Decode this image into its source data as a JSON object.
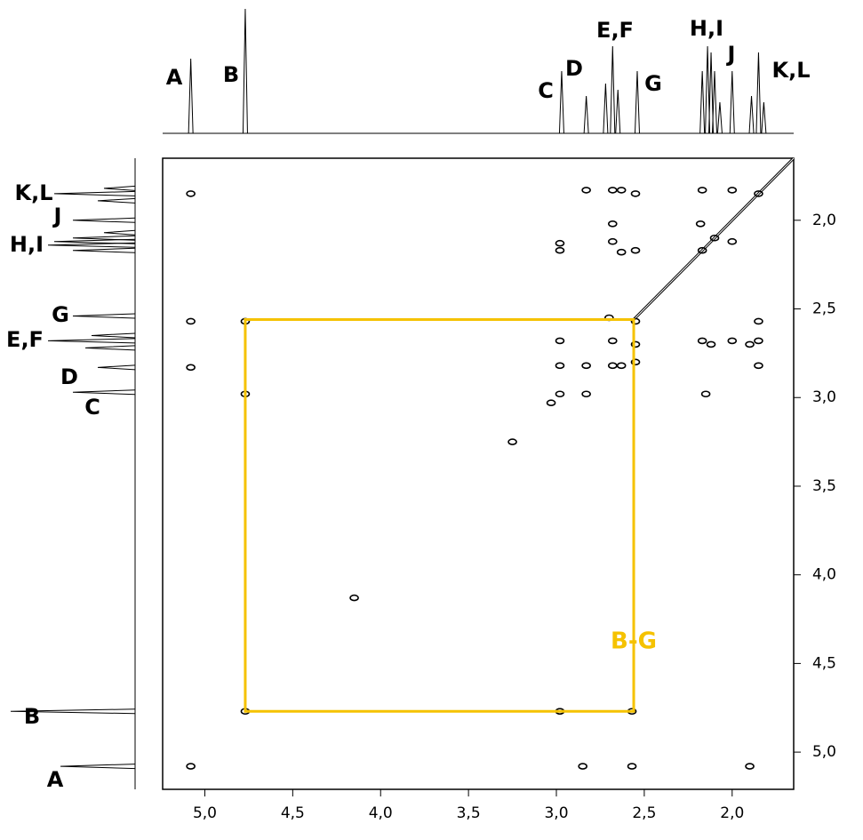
{
  "chart_data": {
    "type": "scatter",
    "xlim": [
      5.24,
      1.65
    ],
    "ylim": [
      1.65,
      5.21
    ],
    "xticks": [
      {
        "value": 5.0,
        "label": "5,0"
      },
      {
        "value": 4.5,
        "label": "4,5"
      },
      {
        "value": 4.0,
        "label": "4,0"
      },
      {
        "value": 3.5,
        "label": "3,5"
      },
      {
        "value": 3.0,
        "label": "3,0"
      },
      {
        "value": 2.5,
        "label": "2,5"
      },
      {
        "value": 2.0,
        "label": "2,0"
      }
    ],
    "yticks": [
      {
        "value": 2.0,
        "label": "2,0"
      },
      {
        "value": 2.5,
        "label": "2,5"
      },
      {
        "value": 3.0,
        "label": "3,0"
      },
      {
        "value": 3.5,
        "label": "3,5"
      },
      {
        "value": 4.0,
        "label": "4,0"
      },
      {
        "value": 4.5,
        "label": "4,5"
      },
      {
        "value": 5.0,
        "label": "5,0"
      }
    ],
    "peak_labels": [
      "A",
      "B",
      "C",
      "D",
      "E,F",
      "G",
      "H,I",
      "J",
      "K,L"
    ],
    "projection": {
      "shift": [
        5.08,
        4.77,
        2.97,
        2.83,
        2.72,
        2.68,
        2.65,
        2.54,
        2.17,
        2.14,
        2.12,
        2.1,
        2.07,
        2.0,
        1.89,
        1.85,
        1.82
      ],
      "height": [
        60,
        100,
        50,
        30,
        40,
        70,
        35,
        50,
        50,
        70,
        65,
        50,
        25,
        50,
        30,
        65,
        25
      ]
    },
    "series": [
      {
        "color": "#000000",
        "x": [
          5.08,
          5.08,
          5.08,
          5.08,
          4.77,
          4.77,
          4.77,
          2.98,
          2.85,
          2.57,
          1.9,
          2.98,
          2.57,
          2.83,
          2.68,
          2.63,
          2.55,
          2.68,
          2.98,
          2.98,
          2.68,
          2.63,
          2.55,
          2.17,
          2.0,
          1.85,
          2.18,
          2.1,
          2.0,
          2.17,
          1.85,
          2.17,
          2.12,
          2.0,
          1.85,
          1.9,
          1.85,
          2.98,
          2.68,
          2.98,
          2.83,
          2.83,
          2.98,
          2.15,
          2.55,
          2.55,
          2.55,
          2.68,
          2.63,
          2.7,
          3.25,
          4.15,
          3.03
        ],
        "y": [
          1.85,
          2.57,
          2.83,
          5.08,
          2.57,
          2.98,
          4.77,
          4.77,
          5.08,
          5.08,
          5.08,
          4.77,
          4.77,
          1.83,
          1.83,
          1.83,
          1.85,
          2.02,
          2.13,
          2.17,
          2.12,
          2.18,
          2.17,
          1.83,
          1.83,
          1.85,
          2.02,
          2.1,
          2.12,
          2.17,
          2.57,
          2.68,
          2.7,
          2.68,
          2.68,
          2.7,
          2.82,
          2.68,
          2.68,
          2.82,
          2.82,
          2.98,
          2.98,
          2.98,
          2.57,
          2.7,
          2.8,
          2.82,
          2.82,
          2.55,
          3.25,
          4.13,
          3.03
        ]
      }
    ],
    "diagonal": [
      2.56,
      1.65
    ],
    "box": {
      "label": "B-G",
      "x": [
        4.77,
        2.56
      ],
      "y": [
        2.56,
        4.77
      ],
      "color": "#f5c200"
    }
  }
}
